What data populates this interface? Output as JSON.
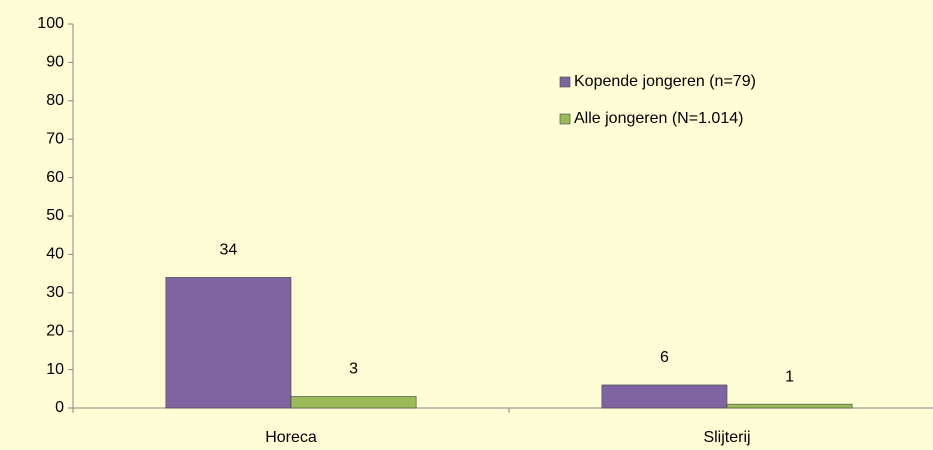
{
  "chart_data": {
    "type": "bar",
    "categories": [
      "Horeca",
      "Slijterij"
    ],
    "series": [
      {
        "name": "Kopende jongeren (n=79)",
        "color": "#8064a2",
        "values": [
          34,
          6
        ]
      },
      {
        "name": "Alle jongeren (N=1.014)",
        "color": "#9bbb59",
        "values": [
          3,
          1
        ]
      }
    ],
    "ylim": [
      0,
      100
    ],
    "yticks": [
      0,
      10,
      20,
      30,
      40,
      50,
      60,
      70,
      80,
      90,
      100
    ],
    "grid": false,
    "legend": "upper right",
    "show_value_labels": true
  }
}
